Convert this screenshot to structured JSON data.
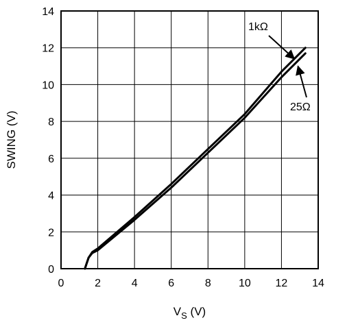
{
  "chart_data": {
    "type": "line",
    "title": "",
    "xlabel_main": "V",
    "xlabel_sub": "S",
    "xlabel_unit": " (V)",
    "ylabel": "SWING (V)",
    "xlim": [
      0,
      14
    ],
    "ylim": [
      0,
      14
    ],
    "xticks": [
      "0",
      "2",
      "4",
      "6",
      "8",
      "10",
      "12",
      "14"
    ],
    "yticks": [
      "0",
      "2",
      "4",
      "6",
      "8",
      "10",
      "12",
      "14"
    ],
    "grid": true,
    "legend": "none",
    "series": [
      {
        "name": "1kΩ",
        "x": [
          1.3,
          1.4,
          1.5,
          1.7,
          2.0,
          4.0,
          6.0,
          8.0,
          10.0,
          12.0,
          13.3
        ],
        "y": [
          0.0,
          0.3,
          0.6,
          0.9,
          1.1,
          2.8,
          4.6,
          6.5,
          8.4,
          10.7,
          12.0
        ]
      },
      {
        "name": "25Ω",
        "x": [
          1.3,
          1.4,
          1.5,
          1.7,
          2.0,
          4.0,
          6.0,
          8.0,
          10.0,
          12.0,
          13.3
        ],
        "y": [
          0.0,
          0.3,
          0.6,
          0.85,
          1.0,
          2.65,
          4.4,
          6.3,
          8.2,
          10.4,
          11.7
        ]
      }
    ],
    "annotations": [
      {
        "text": "1kΩ",
        "series": "1kΩ",
        "arrow_to": [
          12.7,
          11.4
        ]
      },
      {
        "text": "25Ω",
        "series": "25Ω",
        "arrow_to": [
          12.9,
          11.0
        ]
      }
    ]
  }
}
